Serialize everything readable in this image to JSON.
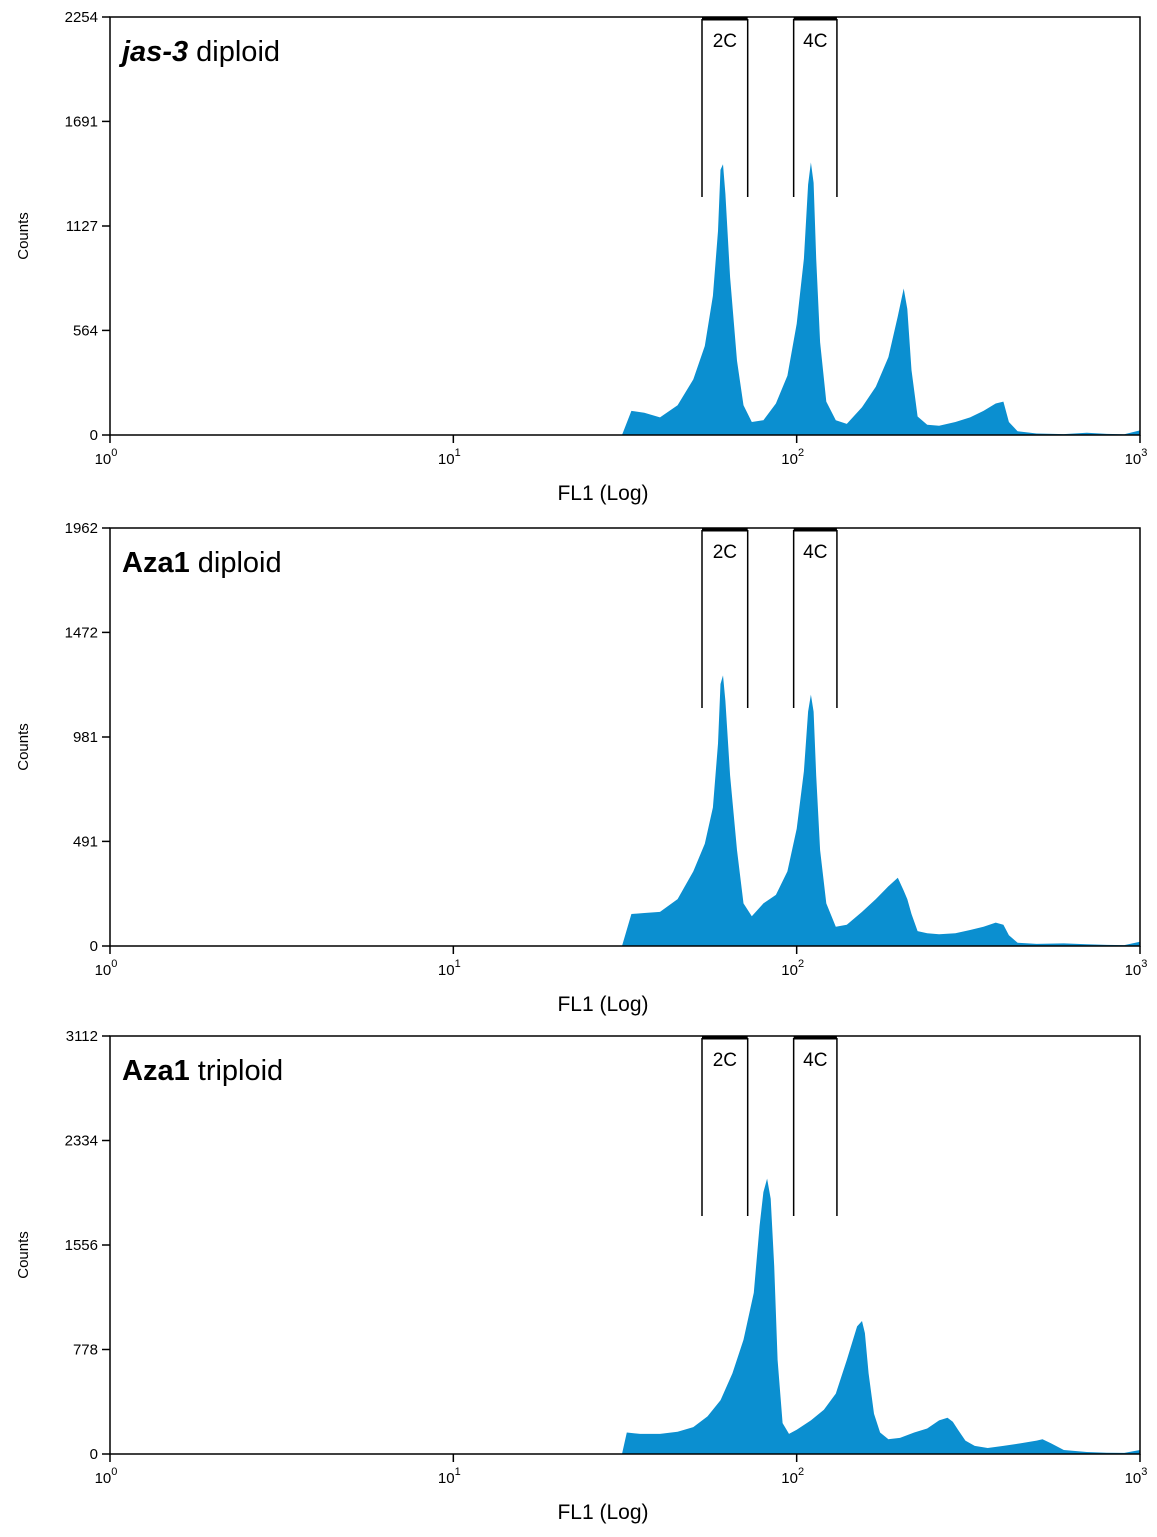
{
  "colors": {
    "histogram": "#0b8fd0",
    "axis": "#000000",
    "background": "#ffffff"
  },
  "chart_data": [
    {
      "type": "histogram",
      "title_bold": "jas-3",
      "title_bold_italic": true,
      "title_rest": " diploid",
      "xlabel": "FL1 (Log)",
      "ylabel": "Counts",
      "x_scale": "log",
      "xlim": [
        1,
        1000
      ],
      "x_ticks": [
        {
          "base": "10",
          "exp": "0"
        },
        {
          "base": "10",
          "exp": "1"
        },
        {
          "base": "10",
          "exp": "2"
        },
        {
          "base": "10",
          "exp": "3"
        }
      ],
      "ylim": [
        0,
        2254
      ],
      "y_ticks": [
        "0",
        "564",
        "1127",
        "1691",
        "2254"
      ],
      "gates": [
        {
          "label": "2C",
          "x_start": 53,
          "x_end": 72
        },
        {
          "label": "4C",
          "x_start": 98,
          "x_end": 131
        }
      ],
      "x": [
        31,
        33,
        36,
        40,
        45,
        50,
        54,
        57,
        59,
        60,
        61,
        62,
        64,
        67,
        70,
        74,
        80,
        87,
        94,
        100,
        105,
        108,
        110,
        112,
        114,
        117,
        122,
        130,
        140,
        155,
        170,
        185,
        197,
        205,
        210,
        216,
        225,
        240,
        260,
        290,
        320,
        350,
        380,
        400,
        415,
        440,
        500,
        600,
        700,
        800,
        900,
        1000
      ],
      "y": [
        0,
        130,
        120,
        95,
        160,
        300,
        480,
        750,
        1100,
        1430,
        1460,
        1300,
        850,
        400,
        160,
        70,
        80,
        170,
        320,
        600,
        950,
        1350,
        1470,
        1360,
        950,
        500,
        180,
        80,
        60,
        150,
        260,
        420,
        640,
        790,
        680,
        350,
        100,
        55,
        50,
        70,
        95,
        130,
        170,
        180,
        70,
        20,
        8,
        5,
        12,
        6,
        4,
        25
      ]
    },
    {
      "type": "histogram",
      "title_bold": "Aza1",
      "title_bold_italic": false,
      "title_rest": " diploid",
      "xlabel": "FL1 (Log)",
      "ylabel": "Counts",
      "x_scale": "log",
      "xlim": [
        1,
        1000
      ],
      "x_ticks": [
        {
          "base": "10",
          "exp": "0"
        },
        {
          "base": "10",
          "exp": "1"
        },
        {
          "base": "10",
          "exp": "2"
        },
        {
          "base": "10",
          "exp": "3"
        }
      ],
      "ylim": [
        0,
        1962
      ],
      "y_ticks": [
        "0",
        "491",
        "981",
        "1472",
        "1962"
      ],
      "gates": [
        {
          "label": "2C",
          "x_start": 53,
          "x_end": 72
        },
        {
          "label": "4C",
          "x_start": 98,
          "x_end": 131
        }
      ],
      "x": [
        31,
        33,
        36,
        40,
        45,
        50,
        54,
        57,
        59,
        60,
        61,
        62,
        64,
        67,
        70,
        74,
        80,
        87,
        94,
        100,
        105,
        108,
        110,
        112,
        114,
        117,
        122,
        130,
        140,
        155,
        170,
        185,
        197,
        205,
        210,
        216,
        225,
        240,
        260,
        290,
        320,
        350,
        380,
        400,
        415,
        440,
        500,
        600,
        700,
        800,
        900,
        1000
      ],
      "y": [
        0,
        150,
        155,
        160,
        220,
        350,
        480,
        650,
        950,
        1230,
        1270,
        1150,
        800,
        450,
        200,
        140,
        200,
        240,
        350,
        550,
        820,
        1100,
        1180,
        1100,
        800,
        450,
        200,
        90,
        100,
        160,
        220,
        280,
        320,
        260,
        220,
        150,
        70,
        60,
        55,
        60,
        75,
        90,
        110,
        100,
        50,
        15,
        10,
        12,
        8,
        5,
        4,
        20
      ]
    },
    {
      "type": "histogram",
      "title_bold": "Aza1",
      "title_bold_italic": false,
      "title_rest": " triploid",
      "xlabel": "FL1 (Log)",
      "ylabel": "Counts",
      "x_scale": "log",
      "xlim": [
        1,
        1000
      ],
      "x_ticks": [
        {
          "base": "10",
          "exp": "0"
        },
        {
          "base": "10",
          "exp": "1"
        },
        {
          "base": "10",
          "exp": "2"
        },
        {
          "base": "10",
          "exp": "3"
        }
      ],
      "ylim": [
        0,
        3112
      ],
      "y_ticks": [
        "0",
        "778",
        "1556",
        "2334",
        "3112"
      ],
      "gates": [
        {
          "label": "2C",
          "x_start": 53,
          "x_end": 72
        },
        {
          "label": "4C",
          "x_start": 98,
          "x_end": 131
        }
      ],
      "x": [
        31,
        32,
        35,
        40,
        45,
        50,
        55,
        60,
        65,
        70,
        75,
        78,
        80,
        82,
        84,
        86,
        88,
        91,
        95,
        100,
        110,
        120,
        130,
        140,
        150,
        155,
        158,
        162,
        168,
        175,
        185,
        200,
        220,
        240,
        260,
        275,
        285,
        295,
        310,
        330,
        360,
        400,
        450,
        500,
        520,
        550,
        600,
        700,
        800,
        900,
        1000
      ],
      "y": [
        0,
        160,
        150,
        150,
        165,
        200,
        280,
        400,
        600,
        850,
        1200,
        1700,
        1950,
        2050,
        1900,
        1400,
        700,
        230,
        150,
        180,
        250,
        330,
        450,
        700,
        950,
        990,
        900,
        600,
        300,
        160,
        110,
        120,
        160,
        190,
        250,
        270,
        240,
        180,
        100,
        60,
        45,
        60,
        80,
        100,
        110,
        80,
        30,
        15,
        10,
        8,
        30
      ]
    }
  ]
}
